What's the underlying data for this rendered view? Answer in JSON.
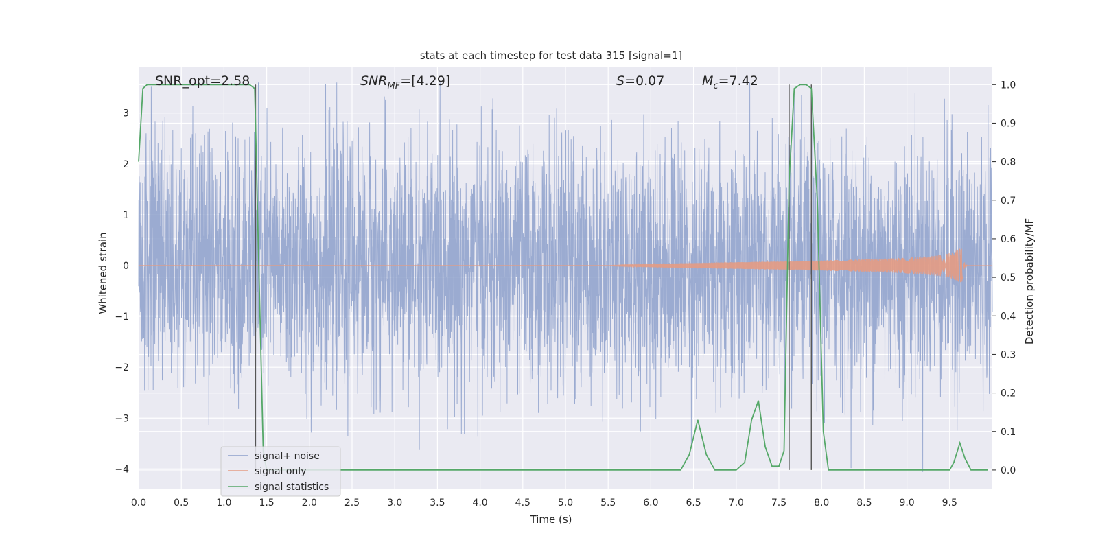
{
  "chart_data": {
    "type": "line",
    "title": "stats at each timestep for test data 315 [signal=1]",
    "xlabel": "Time (s)",
    "ylabel_left": "Whitened strain",
    "ylabel_right": "Detection probability/MF",
    "xlim": [
      0,
      10
    ],
    "ylim_left": [
      -4.4,
      3.9
    ],
    "ylim_right": [
      -0.05,
      1.045
    ],
    "x_ticks": [
      "0.0",
      "0.5",
      "1.0",
      "1.5",
      "2.0",
      "2.5",
      "3.0",
      "3.5",
      "4.0",
      "4.5",
      "5.0",
      "5.5",
      "6.0",
      "6.5",
      "7.0",
      "7.5",
      "8.0",
      "8.5",
      "9.0",
      "9.5"
    ],
    "y_ticks_left": [
      "−4",
      "−3",
      "−2",
      "−1",
      "0",
      "1",
      "2",
      "3"
    ],
    "y_ticks_right": [
      "0.0",
      "0.1",
      "0.2",
      "0.3",
      "0.4",
      "0.5",
      "0.6",
      "0.7",
      "0.8",
      "0.9",
      "1.0"
    ],
    "grid": true,
    "legend_position": "lower-left",
    "annotations": {
      "snr_opt": "SNR_opt=2.58",
      "snr_mf_label": "SNR",
      "snr_mf_sub": "MF",
      "snr_mf_value": "=[4.29]",
      "s_label": "S",
      "s_value": "=0.07",
      "mc_label": "M",
      "mc_sub": "c",
      "mc_value": "=7.42"
    },
    "vlines_x": [
      1.37,
      7.62,
      7.88
    ],
    "series": [
      {
        "name": "signal+ noise",
        "color": "#8da0cb",
        "axis": "left",
        "kind": "noise",
        "typical_amplitude": 1.2,
        "peak_range": [
          -4.1,
          3.6
        ]
      },
      {
        "name": "signal only",
        "color": "#e49b83",
        "axis": "left",
        "kind": "chirp",
        "start_x": 5.5,
        "merger_x": 9.65,
        "peak_amplitude": 0.33
      },
      {
        "name": "signal statistics",
        "color": "#55a868",
        "axis": "right",
        "x": [
          0.0,
          0.05,
          0.1,
          0.2,
          0.5,
          1.0,
          1.3,
          1.36,
          1.4,
          1.46,
          1.5,
          1.55,
          2.0,
          3.0,
          4.0,
          5.0,
          6.0,
          6.35,
          6.45,
          6.55,
          6.65,
          6.75,
          6.85,
          7.0,
          7.1,
          7.18,
          7.26,
          7.34,
          7.42,
          7.5,
          7.56,
          7.62,
          7.68,
          7.75,
          7.82,
          7.88,
          7.95,
          8.02,
          8.08,
          8.15,
          8.5,
          9.0,
          9.5,
          9.55,
          9.62,
          9.68,
          9.75,
          9.85,
          9.95
        ],
        "values": [
          0.8,
          0.99,
          1.0,
          1.0,
          1.0,
          1.0,
          1.0,
          0.99,
          0.6,
          0.05,
          0.0,
          0.0,
          0.0,
          0.0,
          0.0,
          0.0,
          0.0,
          0.0,
          0.04,
          0.13,
          0.04,
          0.0,
          0.0,
          0.0,
          0.02,
          0.13,
          0.18,
          0.06,
          0.01,
          0.01,
          0.05,
          0.75,
          0.99,
          1.0,
          1.0,
          0.99,
          0.7,
          0.1,
          0.0,
          0.0,
          0.0,
          0.0,
          0.0,
          0.02,
          0.07,
          0.03,
          0.0,
          0.0,
          0.0
        ]
      }
    ]
  }
}
